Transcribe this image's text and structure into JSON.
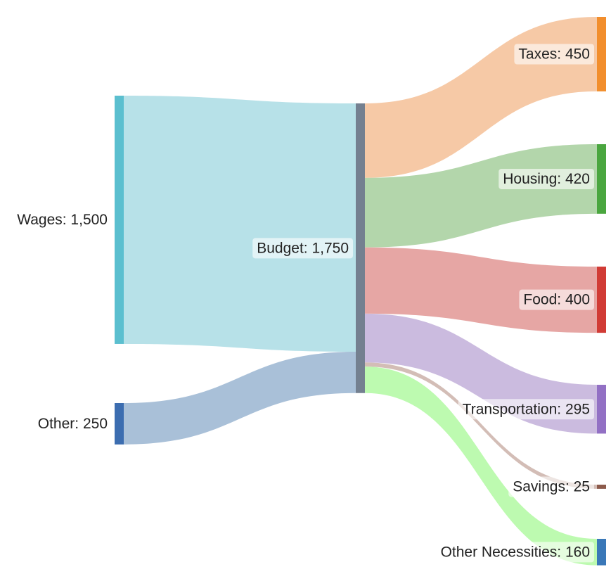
{
  "chart_data": {
    "type": "sankey",
    "nodes": [
      {
        "id": "wages",
        "name": "Wages",
        "value": 1500,
        "label": "Wages: 1,500",
        "color": "#5bbfcf"
      },
      {
        "id": "other",
        "name": "Other",
        "value": 250,
        "label": "Other: 250",
        "color": "#3c6db0"
      },
      {
        "id": "budget",
        "name": "Budget",
        "value": 1750,
        "label": "Budget: 1,750",
        "color": "#748090"
      },
      {
        "id": "taxes",
        "name": "Taxes",
        "value": 450,
        "label": "Taxes: 450",
        "color": "#f28e2c"
      },
      {
        "id": "housing",
        "name": "Housing",
        "value": 420,
        "label": "Housing: 420",
        "color": "#4aa63f"
      },
      {
        "id": "food",
        "name": "Food",
        "value": 400,
        "label": "Food: 400",
        "color": "#d13b35"
      },
      {
        "id": "transportation",
        "name": "Transportation",
        "value": 295,
        "label": "Transportation: 295",
        "color": "#9270c4"
      },
      {
        "id": "savings",
        "name": "Savings",
        "value": 25,
        "label": "Savings: 25",
        "color": "#8c5a4b"
      },
      {
        "id": "other_necessities",
        "name": "Other Necessities",
        "value": 160,
        "label": "Other Necessities: 160",
        "color": "#3a78b8"
      }
    ],
    "links": [
      {
        "source": "wages",
        "target": "budget",
        "value": 1500,
        "color": "#b7e1e8"
      },
      {
        "source": "other",
        "target": "budget",
        "value": 250,
        "color": "#a9c0d8"
      },
      {
        "source": "budget",
        "target": "taxes",
        "value": 450,
        "color": "#f6c9a6"
      },
      {
        "source": "budget",
        "target": "housing",
        "value": 420,
        "color": "#b3d6ab"
      },
      {
        "source": "budget",
        "target": "food",
        "value": 400,
        "color": "#e6a6a4"
      },
      {
        "source": "budget",
        "target": "transportation",
        "value": 295,
        "color": "#cbbbdf"
      },
      {
        "source": "budget",
        "target": "savings",
        "value": 25,
        "color": "#d3bdb6"
      },
      {
        "source": "budget",
        "target": "other_necessities",
        "value": 160,
        "color": "#bdfab0"
      }
    ]
  }
}
